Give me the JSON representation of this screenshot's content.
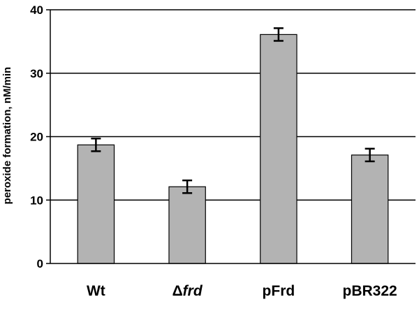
{
  "chart_data": {
    "type": "bar",
    "title": "",
    "xlabel": "",
    "ylabel": "peroxide formation, nM/min",
    "ylim": [
      0,
      40
    ],
    "yticks": [
      "0",
      "10",
      "20",
      "30",
      "40"
    ],
    "grid": true,
    "categories": [
      "Wt",
      "Δfrd",
      "pFrd",
      "pBR322"
    ],
    "category_parts": [
      {
        "plain": "Wt",
        "italic": ""
      },
      {
        "plain": "Δ",
        "italic": "frd"
      },
      {
        "plain": "pFrd",
        "italic": ""
      },
      {
        "plain": "pBR322",
        "italic": ""
      }
    ],
    "values": [
      18.7,
      12.1,
      36.1,
      17.1
    ],
    "error": [
      1.0,
      1.0,
      1.0,
      1.0
    ],
    "bar_color": "#b3b3b3",
    "edge_color": "#000000"
  }
}
